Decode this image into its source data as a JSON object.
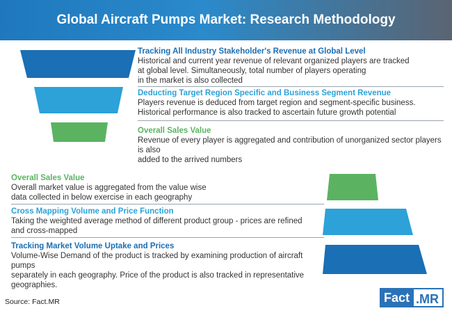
{
  "header": {
    "title": "Global Aircraft Pumps Market: Research Methodology"
  },
  "top_section": [
    {
      "heading": "Tracking All Industry Stakeholder's Revenue at Global Level",
      "lines": [
        "Historical and current year revenue of relevant organized players are tracked",
        "at global level. Simultaneously, total number of players operating",
        "in the market is also collected"
      ],
      "color": "#1a6fb5"
    },
    {
      "heading": "Deducting Target Region Specific and Business Segment Revenue",
      "lines": [
        "Players revenue is deduced from target region and segment-specific business.",
        "Historical performance is also tracked to ascertain future growth potential"
      ],
      "color": "#2ca2d8"
    },
    {
      "heading": "Overall Sales Value",
      "lines": [
        "Revenue of every player is aggregated and contribution of unorganized sector players is also",
        "added to the arrived numbers"
      ],
      "color": "#5bb361"
    }
  ],
  "bottom_section": [
    {
      "heading": "Overall Sales Value",
      "lines": [
        "Overall market value is aggregated from the value wise",
        "data collected in below exercise in each geography"
      ],
      "color": "#5bb361"
    },
    {
      "heading": "Cross Mapping Volume and Price Function",
      "lines": [
        "Taking the weighted average method of different product group - prices are refined",
        "and cross-mapped"
      ],
      "color": "#2ca2d8"
    },
    {
      "heading": "Tracking Market Volume Uptake and Prices",
      "lines": [
        "Volume-Wise Demand of the product is tracked by examining production of aircraft pumps",
        "separately in each geography. Price of the product is also tracked in representative",
        "geographies."
      ],
      "color": "#1a6fb5"
    }
  ],
  "footer": {
    "source": "Source: Fact.MR",
    "logo_left": "Fact",
    "logo_right": ".MR"
  }
}
